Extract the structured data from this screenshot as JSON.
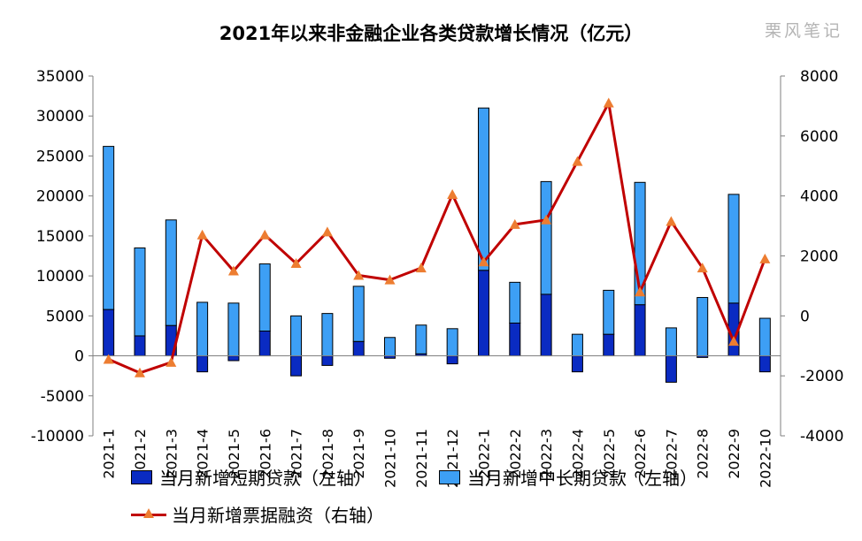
{
  "watermark": "栗风笔记",
  "colors": {
    "short_term": "#0a2bc2",
    "long_term": "#3d9ff5",
    "bill": "#c00000",
    "bill_marker": "#ed7d31",
    "axis": "#7f7f7f"
  },
  "chart_data": {
    "type": "bar",
    "title": "2021年以来非金融企业各类贷款增长情况（亿元）",
    "categories": [
      "2021-1",
      "2021-2",
      "2021-3",
      "2021-4",
      "2021-5",
      "2021-6",
      "2021-7",
      "2021-8",
      "2021-9",
      "2021-10",
      "2021-11",
      "2021-12",
      "2022-1",
      "2022-2",
      "2022-3",
      "2022-4",
      "2022-5",
      "2022-6",
      "2022-7",
      "2022-8",
      "2022-9",
      "2022-10"
    ],
    "y_left": {
      "min": -10000,
      "max": 35000,
      "ticks": [
        "-10000",
        "-5000",
        "0",
        "5000",
        "10000",
        "15000",
        "20000",
        "25000",
        "30000",
        "35000"
      ]
    },
    "y_right": {
      "min": -4000,
      "max": 8000,
      "ticks": [
        "-4000",
        "-2000",
        "0",
        "2000",
        "4000",
        "6000",
        "8000"
      ]
    },
    "series": [
      {
        "name": "当月新增短期贷款（左轴）",
        "type": "bar",
        "axis": "left",
        "values": [
          5800,
          2500,
          3800,
          -2000,
          -600,
          3100,
          -2500,
          -1200,
          1800,
          -300,
          250,
          -1000,
          10700,
          4100,
          7700,
          -2000,
          2700,
          6400,
          -3300,
          -200,
          6600,
          -2000
        ]
      },
      {
        "name": "当月新增中长期贷款（左轴）",
        "type": "bar",
        "axis": "left",
        "values": [
          20400,
          11000,
          13200,
          6700,
          6600,
          8400,
          5000,
          5300,
          6900,
          2300,
          3600,
          3400,
          20300,
          5100,
          14100,
          2700,
          5500,
          15300,
          3500,
          7300,
          13600,
          4700
        ]
      },
      {
        "name": "当月新增票据融资（右轴）",
        "type": "line",
        "axis": "right",
        "values": [
          -1450,
          -1900,
          -1550,
          2700,
          1500,
          2700,
          1750,
          2800,
          1350,
          1200,
          1600,
          4050,
          1800,
          3050,
          3200,
          5150,
          7100,
          800,
          3150,
          1600,
          -850,
          1900
        ]
      }
    ],
    "legend_position": "bottom",
    "grid": false
  }
}
